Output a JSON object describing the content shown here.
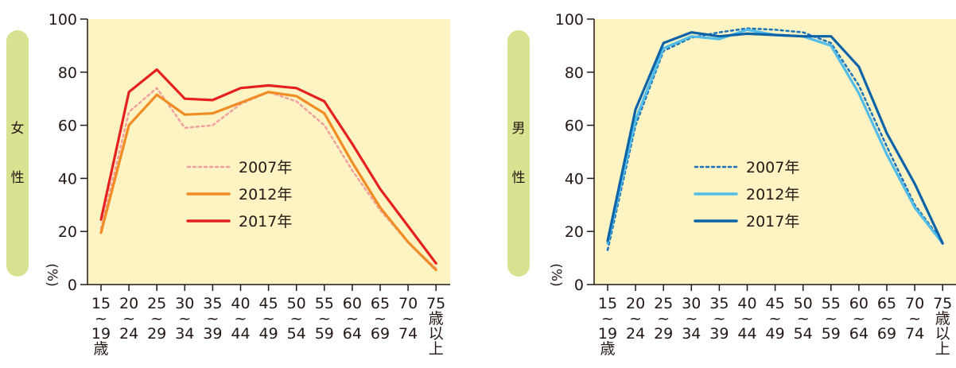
{
  "chart_data": [
    {
      "type": "line",
      "side_label": [
        "女",
        "性"
      ],
      "unit": "(%)",
      "categories": [
        [
          "15",
          "~",
          "19",
          "歳"
        ],
        [
          "20",
          "~",
          "24"
        ],
        [
          "25",
          "~",
          "29"
        ],
        [
          "30",
          "~",
          "34"
        ],
        [
          "35",
          "~",
          "39"
        ],
        [
          "40",
          "~",
          "44"
        ],
        [
          "45",
          "~",
          "49"
        ],
        [
          "50",
          "~",
          "54"
        ],
        [
          "55",
          "~",
          "59"
        ],
        [
          "60",
          "~",
          "64"
        ],
        [
          "65",
          "~",
          "69"
        ],
        [
          "70",
          "~",
          "74"
        ],
        [
          "75",
          "歳",
          "以",
          "上"
        ]
      ],
      "yticks": [
        "0",
        "20",
        "40",
        "60",
        "80",
        "100"
      ],
      "ylim": [
        0,
        100
      ],
      "legend_placement": "center-right",
      "plot_background": "#fdf3c3",
      "series": [
        {
          "name": "2007年",
          "color": "#f0a0a0",
          "dash": "dotted",
          "values": [
            21,
            65,
            74,
            59,
            60,
            68,
            72.5,
            69,
            60,
            43,
            28,
            16,
            6
          ]
        },
        {
          "name": "2012年",
          "color": "#f08c23",
          "dash": "solid",
          "values": [
            19.5,
            60,
            71.5,
            64,
            64.5,
            68.5,
            72.5,
            71,
            64.5,
            46,
            29,
            16,
            5.5
          ]
        },
        {
          "name": "2017年",
          "color": "#e6201e",
          "dash": "solid",
          "values": [
            24.5,
            72.5,
            81,
            70,
            69.5,
            74,
            75,
            74,
            69,
            53,
            36,
            22,
            8
          ]
        }
      ]
    },
    {
      "type": "line",
      "side_label": [
        "男",
        "性"
      ],
      "unit": "(%)",
      "categories": [
        [
          "15",
          "~",
          "19",
          "歳"
        ],
        [
          "20",
          "~",
          "24"
        ],
        [
          "25",
          "~",
          "29"
        ],
        [
          "30",
          "~",
          "34"
        ],
        [
          "35",
          "~",
          "39"
        ],
        [
          "40",
          "~",
          "44"
        ],
        [
          "45",
          "~",
          "49"
        ],
        [
          "50",
          "~",
          "54"
        ],
        [
          "55",
          "~",
          "59"
        ],
        [
          "60",
          "~",
          "64"
        ],
        [
          "65",
          "~",
          "69"
        ],
        [
          "70",
          "~",
          "74"
        ],
        [
          "75",
          "歳",
          "以",
          "上"
        ]
      ],
      "yticks": [
        "0",
        "20",
        "40",
        "60",
        "80",
        "100"
      ],
      "ylim": [
        0,
        100
      ],
      "legend_placement": "center-right",
      "plot_background": "#fdf3c3",
      "series": [
        {
          "name": "2007年",
          "color": "#1a72b9",
          "dash": "dotted",
          "values": [
            13,
            60,
            88,
            93,
            95,
            96.5,
            96,
            95,
            91,
            75,
            52,
            30,
            16
          ]
        },
        {
          "name": "2012年",
          "color": "#52bde8",
          "dash": "solid",
          "values": [
            15.5,
            62,
            89,
            93.5,
            92.5,
            96,
            94,
            93.5,
            90,
            72,
            49,
            29,
            15.5
          ]
        },
        {
          "name": "2017年",
          "color": "#0d63a8",
          "dash": "solid",
          "values": [
            16.5,
            66,
            91,
            95,
            93.5,
            94.5,
            94,
            93.5,
            93.5,
            82,
            57,
            38,
            15.5
          ]
        }
      ]
    }
  ],
  "colors": {
    "side_pill": "#d8e290",
    "axis": "#231815"
  }
}
